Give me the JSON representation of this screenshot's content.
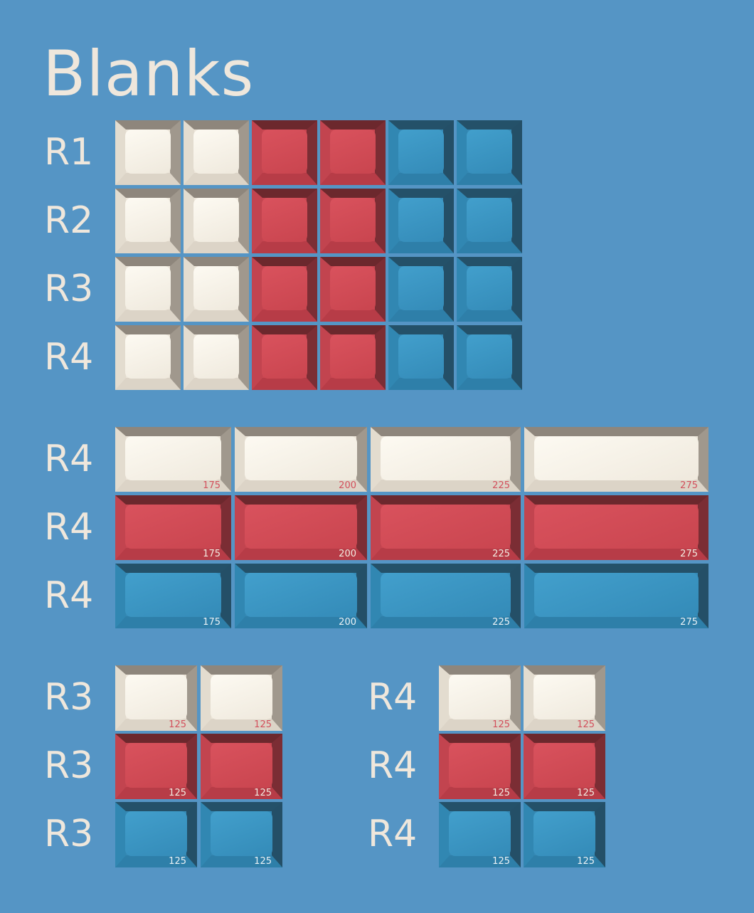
{
  "title": "Blanks",
  "colors": {
    "background": "#5595c5",
    "white": "#f6f1e6",
    "red": "#d24d58",
    "blue": "#3a93c0",
    "text": "#efe7dc"
  },
  "sections": [
    {
      "rows": [
        {
          "label": "R1",
          "keys": [
            {
              "color": "white"
            },
            {
              "color": "white"
            },
            {
              "color": "red"
            },
            {
              "color": "red"
            },
            {
              "color": "blue"
            },
            {
              "color": "blue"
            }
          ]
        },
        {
          "label": "R2",
          "keys": [
            {
              "color": "white"
            },
            {
              "color": "white"
            },
            {
              "color": "red"
            },
            {
              "color": "red"
            },
            {
              "color": "blue"
            },
            {
              "color": "blue"
            }
          ]
        },
        {
          "label": "R3",
          "keys": [
            {
              "color": "white"
            },
            {
              "color": "white"
            },
            {
              "color": "red"
            },
            {
              "color": "red"
            },
            {
              "color": "blue"
            },
            {
              "color": "blue"
            }
          ]
        },
        {
          "label": "R4",
          "keys": [
            {
              "color": "white"
            },
            {
              "color": "white"
            },
            {
              "color": "red"
            },
            {
              "color": "red"
            },
            {
              "color": "blue"
            },
            {
              "color": "blue"
            }
          ]
        }
      ]
    },
    {
      "rows": [
        {
          "label": "R4",
          "keys": [
            {
              "color": "white",
              "size": "175"
            },
            {
              "color": "white",
              "size": "200"
            },
            {
              "color": "white",
              "size": "225"
            },
            {
              "color": "white",
              "size": "275"
            }
          ]
        },
        {
          "label": "R4",
          "keys": [
            {
              "color": "red",
              "size": "175"
            },
            {
              "color": "red",
              "size": "200"
            },
            {
              "color": "red",
              "size": "225"
            },
            {
              "color": "red",
              "size": "275"
            }
          ]
        },
        {
          "label": "R4",
          "keys": [
            {
              "color": "blue",
              "size": "175"
            },
            {
              "color": "blue",
              "size": "200"
            },
            {
              "color": "blue",
              "size": "225"
            },
            {
              "color": "blue",
              "size": "275"
            }
          ]
        }
      ]
    },
    {
      "rows": [
        {
          "label": "R3",
          "keys": [
            {
              "color": "white",
              "size": "125"
            },
            {
              "color": "white",
              "size": "125"
            }
          ]
        },
        {
          "label": "R3",
          "keys": [
            {
              "color": "red",
              "size": "125"
            },
            {
              "color": "red",
              "size": "125"
            }
          ]
        },
        {
          "label": "R3",
          "keys": [
            {
              "color": "blue",
              "size": "125"
            },
            {
              "color": "blue",
              "size": "125"
            }
          ]
        }
      ]
    },
    {
      "rows": [
        {
          "label": "R4",
          "keys": [
            {
              "color": "white",
              "size": "125"
            },
            {
              "color": "white",
              "size": "125"
            }
          ]
        },
        {
          "label": "R4",
          "keys": [
            {
              "color": "red",
              "size": "125"
            },
            {
              "color": "red",
              "size": "125"
            }
          ]
        },
        {
          "label": "R4",
          "keys": [
            {
              "color": "blue",
              "size": "125"
            },
            {
              "color": "blue",
              "size": "125"
            }
          ]
        }
      ]
    }
  ]
}
